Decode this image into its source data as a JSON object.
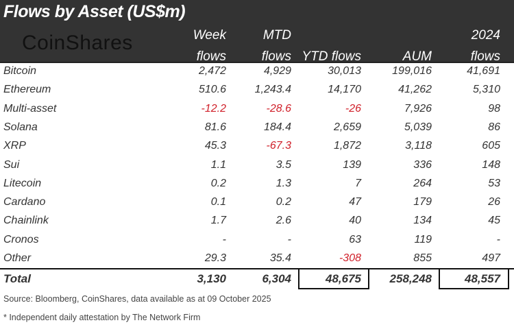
{
  "title": "Flows by Asset (US$m)",
  "logo": "CoinShares",
  "columns": [
    {
      "line1": "Week",
      "line2": "flows"
    },
    {
      "line1": "MTD",
      "line2": "flows"
    },
    {
      "line1": "",
      "line2": "YTD flows"
    },
    {
      "line1": "",
      "line2": "AUM"
    },
    {
      "line1": "2024",
      "line2": "flows"
    }
  ],
  "rows": [
    {
      "name": "Bitcoin",
      "values": [
        "2,472",
        "4,929",
        "30,013",
        "199,016",
        "41,691"
      ]
    },
    {
      "name": "Ethereum",
      "values": [
        "510.6",
        "1,243.4",
        "14,170",
        "41,262",
        "5,310"
      ]
    },
    {
      "name": "Multi-asset",
      "values": [
        "-12.2",
        "-28.6",
        "-26",
        "7,926",
        "98"
      ]
    },
    {
      "name": "Solana",
      "values": [
        "81.6",
        "184.4",
        "2,659",
        "5,039",
        "86"
      ]
    },
    {
      "name": "XRP",
      "values": [
        "45.3",
        "-67.3",
        "1,872",
        "3,118",
        "605"
      ]
    },
    {
      "name": "Sui",
      "values": [
        "1.1",
        "3.5",
        "139",
        "336",
        "148"
      ]
    },
    {
      "name": "Litecoin",
      "values": [
        "0.2",
        "1.3",
        "7",
        "264",
        "53"
      ]
    },
    {
      "name": "Cardano",
      "values": [
        "0.1",
        "0.2",
        "47",
        "179",
        "26"
      ]
    },
    {
      "name": "Chainlink",
      "values": [
        "1.7",
        "2.6",
        "40",
        "134",
        "45"
      ]
    },
    {
      "name": "Cronos",
      "values": [
        "-",
        "-",
        "63",
        "119",
        "-"
      ]
    },
    {
      "name": "Other",
      "values": [
        "29.3",
        "35.4",
        "-308",
        "855",
        "497"
      ]
    }
  ],
  "total": {
    "name": "Total",
    "values": [
      "3,130",
      "6,304",
      "48,675",
      "258,248",
      "48,557"
    ]
  },
  "source": "Source: Bloomberg, CoinShares, data available as at 09 October 2025",
  "footnote": "* Independent daily attestation by The Network Firm",
  "colors": {
    "header_bg": "#333333",
    "negative": "#d0202a"
  }
}
